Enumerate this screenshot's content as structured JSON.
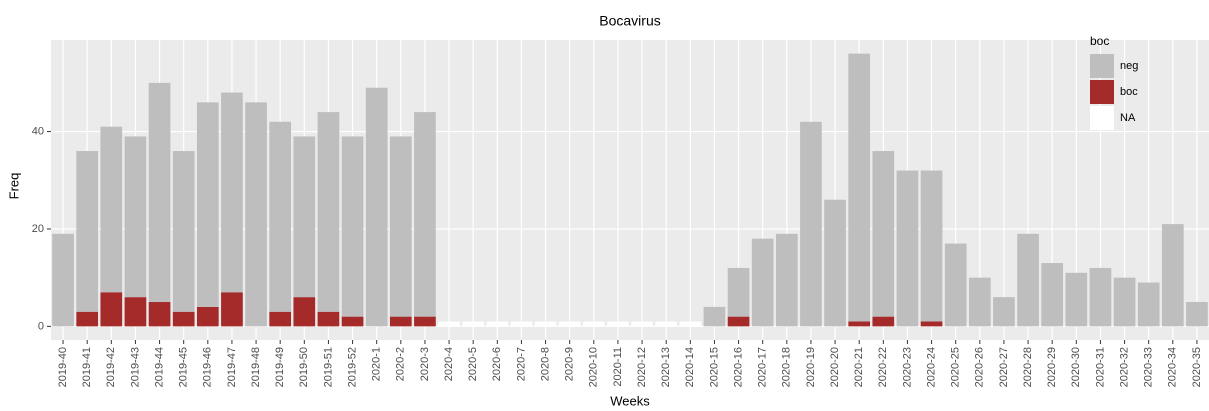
{
  "chart_data": {
    "type": "stacked_bar",
    "title": "Bocavirus",
    "x_label": "Weeks",
    "y_label": "Freq",
    "legend_title": "boc",
    "categories": [
      "2019-40",
      "2019-41",
      "2019-42",
      "2019-43",
      "2019-44",
      "2019-45",
      "2019-46",
      "2019-47",
      "2019-48",
      "2019-49",
      "2019-50",
      "2019-51",
      "2019-52",
      "2020-1",
      "2020-2",
      "2020-3",
      "2020-4",
      "2020-5",
      "2020-6",
      "2020-7",
      "2020-8",
      "2020-9",
      "2020-10",
      "2020-11",
      "2020-12",
      "2020-13",
      "2020-14",
      "2020-15",
      "2020-16",
      "2020-17",
      "2020-18",
      "2020-19",
      "2020-20",
      "2020-21",
      "2020-22",
      "2020-23",
      "2020-24",
      "2020-25",
      "2020-26",
      "2020-27",
      "2020-28",
      "2020-29",
      "2020-30",
      "2020-31",
      "2020-32",
      "2020-33",
      "2020-34",
      "2020-35"
    ],
    "series": [
      {
        "name": "neg",
        "color": "#bebebe",
        "values": [
          19,
          33,
          34,
          33,
          45,
          33,
          42,
          41,
          46,
          39,
          33,
          41,
          37,
          49,
          37,
          42,
          0,
          0,
          0,
          0,
          0,
          0,
          0,
          0,
          0,
          0,
          0,
          4,
          10,
          18,
          19,
          42,
          26,
          55,
          34,
          32,
          31,
          17,
          10,
          6,
          19,
          13,
          11,
          12,
          10,
          9,
          21,
          5
        ]
      },
      {
        "name": "boc",
        "color": "#a52a2a",
        "values": [
          0,
          3,
          7,
          6,
          5,
          3,
          4,
          7,
          0,
          3,
          6,
          3,
          2,
          0,
          2,
          2,
          0,
          0,
          0,
          0,
          0,
          0,
          0,
          0,
          0,
          0,
          0,
          0,
          2,
          0,
          0,
          0,
          0,
          1,
          2,
          0,
          1,
          0,
          0,
          0,
          0,
          0,
          0,
          0,
          0,
          0,
          0,
          0
        ]
      },
      {
        "name": "NA",
        "color": "#ffffff",
        "values": [
          0,
          0,
          0,
          0,
          0,
          0,
          0,
          0,
          0,
          0,
          0,
          0,
          0,
          0,
          0,
          0,
          1,
          1,
          1,
          1,
          1,
          1,
          1,
          1,
          1,
          1,
          1,
          0,
          0,
          0,
          0,
          0,
          0,
          0,
          0,
          0,
          0,
          0,
          0,
          0,
          0,
          0,
          0,
          0,
          0,
          0,
          0,
          0
        ]
      }
    ],
    "ylim": [
      -2.8,
      58.8
    ],
    "yticks": [
      0,
      20,
      40
    ],
    "grid": true,
    "legend_position": "top-right"
  }
}
